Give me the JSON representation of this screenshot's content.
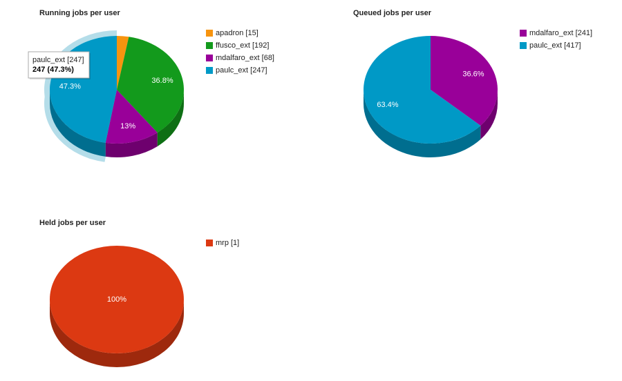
{
  "chart_data": [
    {
      "type": "pie",
      "title": "Running jobs per user",
      "categories": [
        "apadron [15]",
        "ffusco_ext [192]",
        "mdalfaro_ext [68]",
        "paulc_ext [247]"
      ],
      "values": [
        15,
        192,
        68,
        247
      ],
      "colors": [
        "#f7940f",
        "#139a1c",
        "#990099",
        "#0099c6"
      ],
      "slice_labels": [
        null,
        "36.8%",
        "13%",
        "47.3%"
      ],
      "highlight": 3,
      "tooltip": [
        "paulc_ext [247]",
        "247 (47.3%)"
      ]
    },
    {
      "type": "pie",
      "title": "Queued jobs per user",
      "categories": [
        "mdalfaro_ext [241]",
        "paulc_ext [417]"
      ],
      "values": [
        241,
        417
      ],
      "colors": [
        "#990099",
        "#0099c6"
      ],
      "slice_labels": [
        "36.6%",
        "63.4%"
      ]
    },
    {
      "type": "pie",
      "title": "Held jobs per user",
      "categories": [
        "mrp [1]"
      ],
      "values": [
        1
      ],
      "colors": [
        "#dc3912"
      ],
      "slice_labels": [
        "100%"
      ]
    }
  ]
}
